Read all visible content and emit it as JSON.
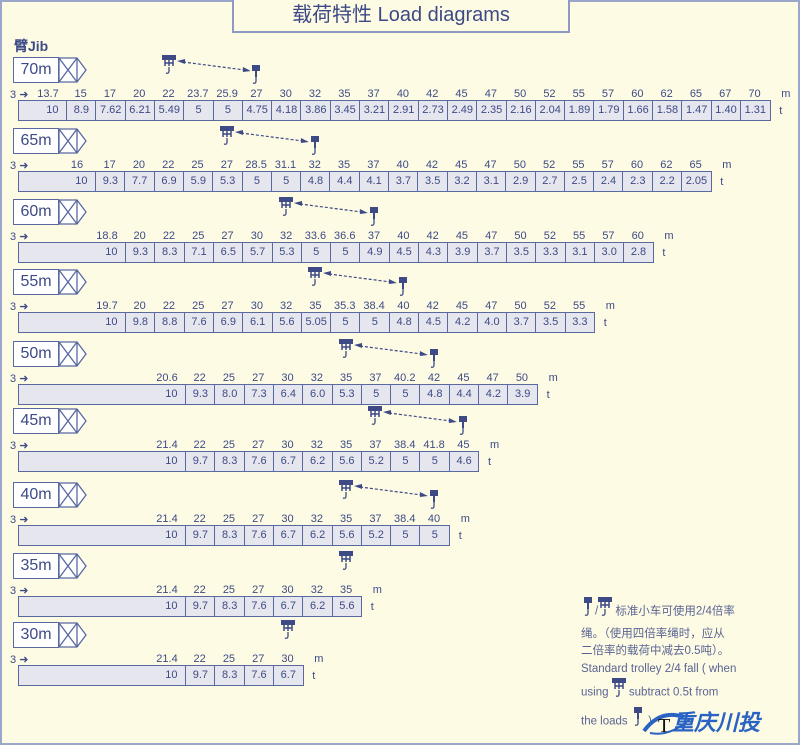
{
  "title": "载荷特性 Load diagrams",
  "jib_label": "臂Jib",
  "start_label": "3",
  "distance_unit": "m",
  "load_unit": "t",
  "colors": {
    "text": "#3d4a86",
    "cell_fill": "#e6e6ee",
    "border": "#5a68a0",
    "background": "#fdfbe4",
    "logo": "#2a63c4"
  },
  "rows": [
    {
      "jib": "70m",
      "distances": [
        "13.7",
        "15",
        "17",
        "20",
        "22",
        "23.7",
        "25.9",
        "27",
        "30",
        "32",
        "35",
        "37",
        "40",
        "42",
        "45",
        "47",
        "50",
        "52",
        "55",
        "57",
        "60",
        "62",
        "65",
        "67",
        "70"
      ],
      "loads": [
        "10",
        "8.9",
        "7.62",
        "6.21",
        "5.49",
        "5",
        "5",
        "4.75",
        "4.18",
        "3.86",
        "3.45",
        "3.21",
        "2.91",
        "2.73",
        "2.49",
        "2.35",
        "2.16",
        "2.04",
        "1.89",
        "1.79",
        "1.66",
        "1.58",
        "1.47",
        "1.40",
        "1.31"
      ]
    },
    {
      "jib": "65m",
      "distances": [
        "16",
        "17",
        "20",
        "22",
        "25",
        "27",
        "28.5",
        "31.1",
        "32",
        "35",
        "37",
        "40",
        "42",
        "45",
        "47",
        "50",
        "52",
        "55",
        "57",
        "60",
        "62",
        "65"
      ],
      "loads": [
        "10",
        "9.3",
        "7.7",
        "6.9",
        "5.9",
        "5.3",
        "5",
        "5",
        "4.8",
        "4.4",
        "4.1",
        "3.7",
        "3.5",
        "3.2",
        "3.1",
        "2.9",
        "2.7",
        "2.5",
        "2.4",
        "2.3",
        "2.2",
        "2.05"
      ]
    },
    {
      "jib": "60m",
      "distances": [
        "18.8",
        "20",
        "22",
        "25",
        "27",
        "30",
        "32",
        "33.6",
        "36.6",
        "37",
        "40",
        "42",
        "45",
        "47",
        "50",
        "52",
        "55",
        "57",
        "60"
      ],
      "loads": [
        "10",
        "9.3",
        "8.3",
        "7.1",
        "6.5",
        "5.7",
        "5.3",
        "5",
        "5",
        "4.9",
        "4.5",
        "4.3",
        "3.9",
        "3.7",
        "3.5",
        "3.3",
        "3.1",
        "3.0",
        "2.8"
      ]
    },
    {
      "jib": "55m",
      "distances": [
        "19.7",
        "20",
        "22",
        "25",
        "27",
        "30",
        "32",
        "35",
        "35.3",
        "38.4",
        "40",
        "42",
        "45",
        "47",
        "50",
        "52",
        "55"
      ],
      "loads": [
        "10",
        "9.8",
        "8.8",
        "7.6",
        "6.9",
        "6.1",
        "5.6",
        "5.05",
        "5",
        "5",
        "4.8",
        "4.5",
        "4.2",
        "4.0",
        "3.7",
        "3.5",
        "3.3"
      ]
    },
    {
      "jib": "50m",
      "distances": [
        "20.6",
        "22",
        "25",
        "27",
        "30",
        "32",
        "35",
        "37",
        "40.2",
        "42",
        "45",
        "47",
        "50"
      ],
      "loads": [
        "10",
        "9.3",
        "8.0",
        "7.3",
        "6.4",
        "6.0",
        "5.3",
        "5",
        "5",
        "4.8",
        "4.4",
        "4.2",
        "3.9"
      ]
    },
    {
      "jib": "45m",
      "distances": [
        "21.4",
        "22",
        "25",
        "27",
        "30",
        "32",
        "35",
        "37",
        "38.4",
        "41.8",
        "45"
      ],
      "loads": [
        "10",
        "9.7",
        "8.3",
        "7.6",
        "6.7",
        "6.2",
        "5.6",
        "5.2",
        "5",
        "5",
        "4.6"
      ]
    },
    {
      "jib": "40m",
      "distances": [
        "21.4",
        "22",
        "25",
        "27",
        "30",
        "32",
        "35",
        "37",
        "38.4",
        "40"
      ],
      "loads": [
        "10",
        "9.7",
        "8.3",
        "7.6",
        "6.7",
        "6.2",
        "5.6",
        "5.2",
        "5",
        "5"
      ]
    },
    {
      "jib": "35m",
      "distances": [
        "21.4",
        "22",
        "25",
        "27",
        "30",
        "32",
        "35"
      ],
      "loads": [
        "10",
        "9.7",
        "8.3",
        "7.6",
        "6.7",
        "6.2",
        "5.6"
      ]
    },
    {
      "jib": "30m",
      "distances": [
        "21.4",
        "22",
        "25",
        "27",
        "30"
      ],
      "loads": [
        "10",
        "9.7",
        "8.3",
        "7.6",
        "6.7"
      ]
    }
  ],
  "note": {
    "cn_1": "标准小车可使用2/4倍率",
    "cn_2": "绳。（使用四倍率绳时，应从",
    "cn_3": "二倍率的载荷中减去0.5吨）。",
    "en_1": "Standard trolley 2/4 fall ( when",
    "en_2a": "using",
    "en_2b": "subtract  0.5t  from",
    "en_3a": "the loads",
    "en_3b": ")"
  },
  "logo": {
    "mark": "T",
    "text": "重庆川投"
  }
}
